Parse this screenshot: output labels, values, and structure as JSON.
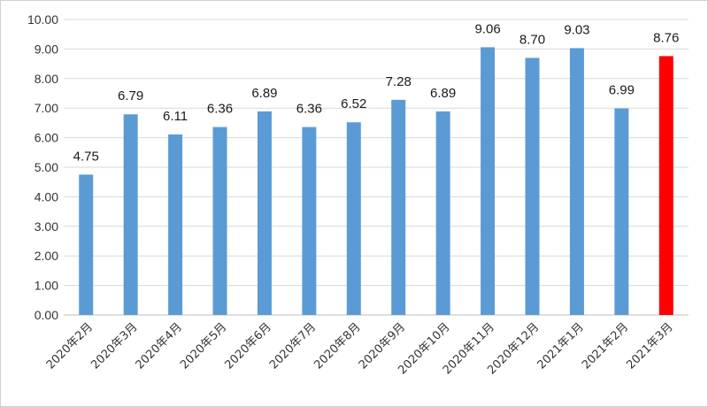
{
  "chart_data": {
    "type": "bar",
    "title": "",
    "xlabel": "",
    "ylabel": "",
    "ylim": [
      0,
      10
    ],
    "yticks": [
      "0.00",
      "1.00",
      "2.00",
      "3.00",
      "4.00",
      "5.00",
      "6.00",
      "7.00",
      "8.00",
      "9.00",
      "10.00"
    ],
    "grid": true,
    "categories": [
      "2020年2月",
      "2020年3月",
      "2020年4月",
      "2020年5月",
      "2020年6月",
      "2020年7月",
      "2020年8月",
      "2020年9月",
      "2020年10月",
      "2020年11月",
      "2020年12月",
      "2021年1月",
      "2021年2月",
      "2021年3月"
    ],
    "values": [
      4.75,
      6.79,
      6.11,
      6.36,
      6.89,
      6.36,
      6.52,
      7.28,
      6.89,
      9.06,
      8.7,
      9.03,
      6.99,
      8.76
    ],
    "data_labels": [
      "4.75",
      "6.79",
      "6.11",
      "6.36",
      "6.89",
      "6.36",
      "6.52",
      "7.28",
      "6.89",
      "9.06",
      "8.70",
      "9.03",
      "6.99",
      "8.76"
    ],
    "bar_color": "#5b9bd5",
    "highlight_color": "#ff0000",
    "highlight_index": 13
  }
}
